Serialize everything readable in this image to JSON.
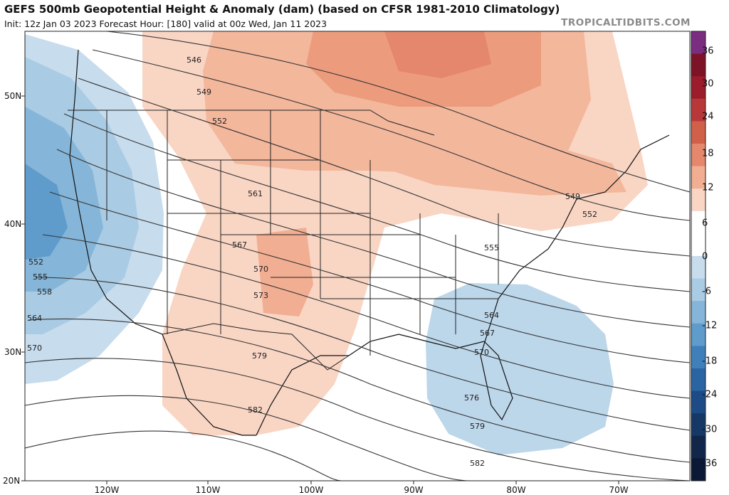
{
  "header": {
    "title": "GEFS 500mb Geopotential Height & Anomaly (dam) (based on CFSR 1981-2010 Climatology)",
    "subtitle": "Init: 12z Jan 03 2023   Forecast Hour: [180]   valid at 00z Wed, Jan 11 2023",
    "brand": "TROPICALTIDBITS.COM"
  },
  "axes": {
    "lat_labels": [
      "50N",
      "40N",
      "30N",
      "20N"
    ],
    "lon_labels": [
      "120W",
      "110W",
      "100W",
      "90W",
      "80W",
      "70W"
    ]
  },
  "colorbar": {
    "labels": [
      "36",
      "30",
      "24",
      "18",
      "12",
      "6",
      "0",
      "-6",
      "-12",
      "-18",
      "-24",
      "-30",
      "-36"
    ],
    "colors": [
      "#7b2d80",
      "#7d1327",
      "#9b1c2a",
      "#b8383a",
      "#d0604a",
      "#e4876c",
      "#f1ae92",
      "#f9d5c4",
      "#ffffff",
      "#ffffff",
      "#c7dced",
      "#a9cbe3",
      "#85b5d8",
      "#5f9ccb",
      "#3f80bb",
      "#2a64a2",
      "#1d4b85",
      "#163866",
      "#12264a",
      "#0b1836"
    ]
  },
  "contours": {
    "levels": [
      {
        "value": "546"
      },
      {
        "value": "549"
      },
      {
        "value": "552"
      },
      {
        "value": "561"
      },
      {
        "value": "567"
      },
      {
        "value": "570"
      },
      {
        "value": "573"
      },
      {
        "value": "579"
      },
      {
        "value": "582"
      },
      {
        "value": "549"
      },
      {
        "value": "552"
      },
      {
        "value": "555"
      },
      {
        "value": "564"
      },
      {
        "value": "567"
      },
      {
        "value": "570"
      },
      {
        "value": "576"
      },
      {
        "value": "579"
      },
      {
        "value": "582"
      },
      {
        "value": "552"
      },
      {
        "value": "555"
      },
      {
        "value": "558"
      },
      {
        "value": "564"
      },
      {
        "value": "570"
      }
    ]
  },
  "colors": {
    "positive_anomaly": "#f4b49a",
    "negative_anomaly": "#a9cbe3",
    "contour_line": "#333333"
  }
}
